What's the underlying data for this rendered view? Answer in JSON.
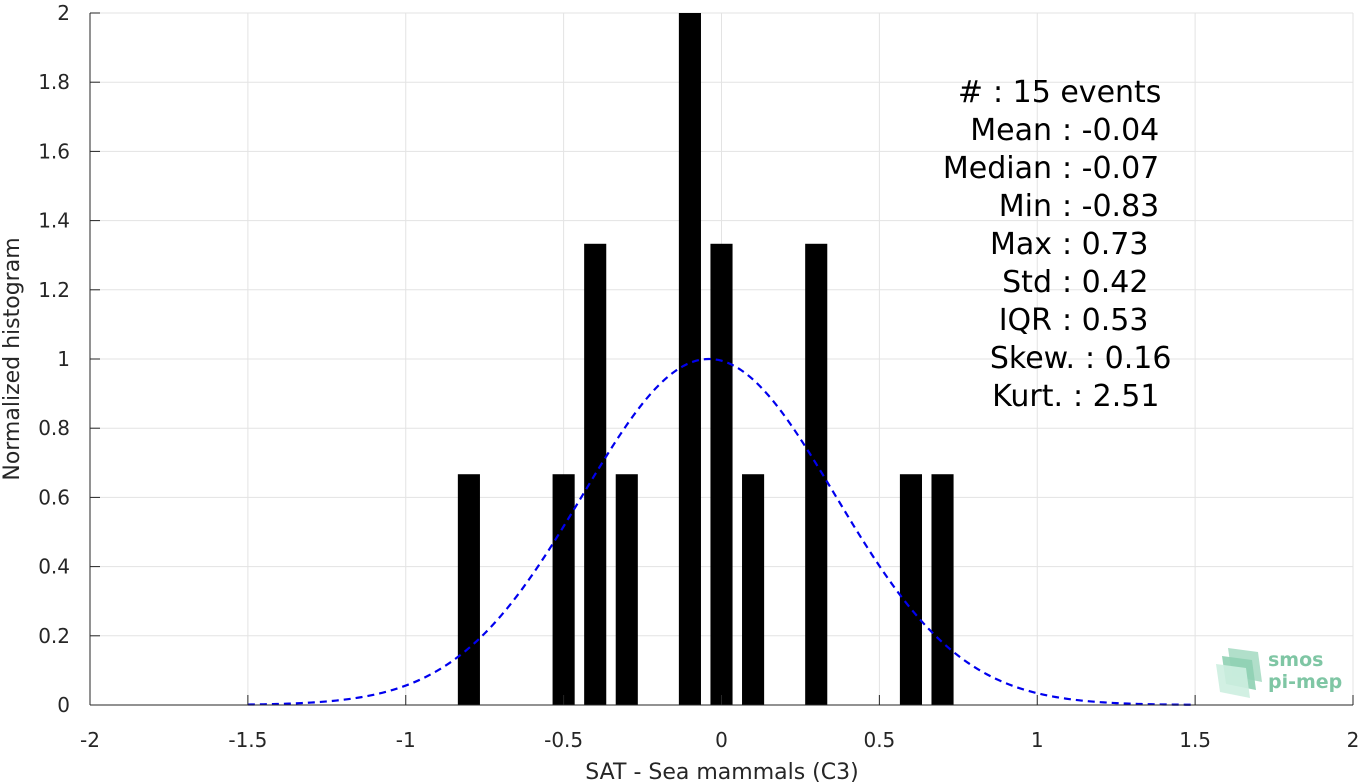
{
  "chart_data": {
    "type": "bar",
    "xlabel": "SAT - Sea mammals (C3)",
    "ylabel": "Normalized histogram",
    "xlim": [
      -2,
      2
    ],
    "ylim": [
      0,
      2
    ],
    "xticks": [
      -2,
      -1.5,
      -1,
      -0.5,
      0,
      0.5,
      1,
      1.5,
      2
    ],
    "xtick_labels": [
      "-2",
      "-1.5",
      "-1",
      "-0.5",
      "0",
      "0.5",
      "1",
      "1.5",
      "2"
    ],
    "yticks": [
      0,
      0.2,
      0.4,
      0.6,
      0.8,
      1,
      1.2,
      1.4,
      1.6,
      1.8,
      2
    ],
    "ytick_labels": [
      "0",
      "0.2",
      "0.4",
      "0.6",
      "0.8",
      "1",
      "1.2",
      "1.4",
      "1.6",
      "1.8",
      "2"
    ],
    "grid": true,
    "bar_width": 0.07,
    "bar_color": "#000000",
    "bars": [
      {
        "x": -0.8,
        "y": 0.667
      },
      {
        "x": -0.5,
        "y": 0.667
      },
      {
        "x": -0.4,
        "y": 1.333
      },
      {
        "x": -0.3,
        "y": 0.667
      },
      {
        "x": -0.1,
        "y": 2.0
      },
      {
        "x": 0.0,
        "y": 1.333
      },
      {
        "x": 0.1,
        "y": 0.667
      },
      {
        "x": 0.3,
        "y": 1.333
      },
      {
        "x": 0.6,
        "y": 0.667
      },
      {
        "x": 0.7,
        "y": 0.667
      }
    ],
    "fit_curve": {
      "style": "dashed",
      "color": "#0000ee",
      "mean": -0.04,
      "std": 0.4,
      "peak": 1.0,
      "x_range": [
        -1.5,
        1.5
      ]
    },
    "annotations": [
      "#  : 15 events",
      "Mean : -0.04",
      "Median : -0.07",
      "Min : -0.83",
      "Max : 0.73",
      "Std : 0.42",
      "IQR : 0.53",
      "Skew. : 0.16",
      "Kurt. : 2.51"
    ]
  },
  "logo": {
    "line1": "smos",
    "line2": "pi-mep",
    "color": "#7fc6a4"
  }
}
